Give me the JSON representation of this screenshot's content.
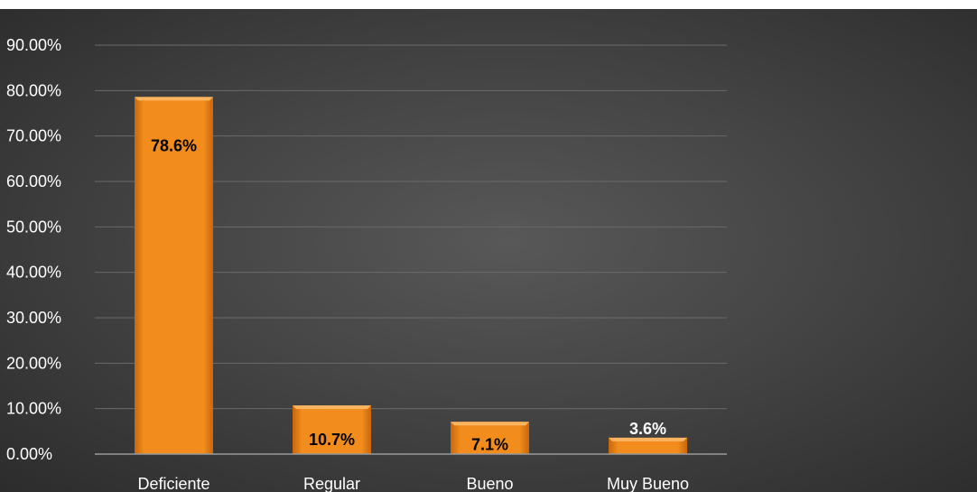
{
  "colors": {
    "bar_fill": "#f28c1c",
    "bar_light": "#fbb560",
    "bar_dark": "#c8670c",
    "gridline": "#6a6a6a",
    "axis": "#9a9a9a",
    "label_text": "#ffffff",
    "data_label_inside": "#000000",
    "data_label_above": "#ffffff"
  },
  "chart_data": {
    "type": "bar",
    "title": "",
    "xlabel": "",
    "ylabel": "",
    "categories": [
      "Deficiente",
      "Regular",
      "Bueno",
      "Muy Bueno"
    ],
    "values": [
      78.6,
      10.7,
      7.1,
      3.6
    ],
    "data_labels": [
      "78.6%",
      "10.7%",
      "7.1%",
      "3.6%"
    ],
    "y_ticks": [
      0,
      10,
      20,
      30,
      40,
      50,
      60,
      70,
      80,
      90
    ],
    "y_tick_labels": [
      "0.00%",
      "10.00%",
      "20.00%",
      "30.00%",
      "40.00%",
      "50.00%",
      "60.00%",
      "70.00%",
      "80.00%",
      "90.00%"
    ],
    "ylim": [
      0,
      90
    ],
    "grid": true,
    "legend": "none"
  }
}
